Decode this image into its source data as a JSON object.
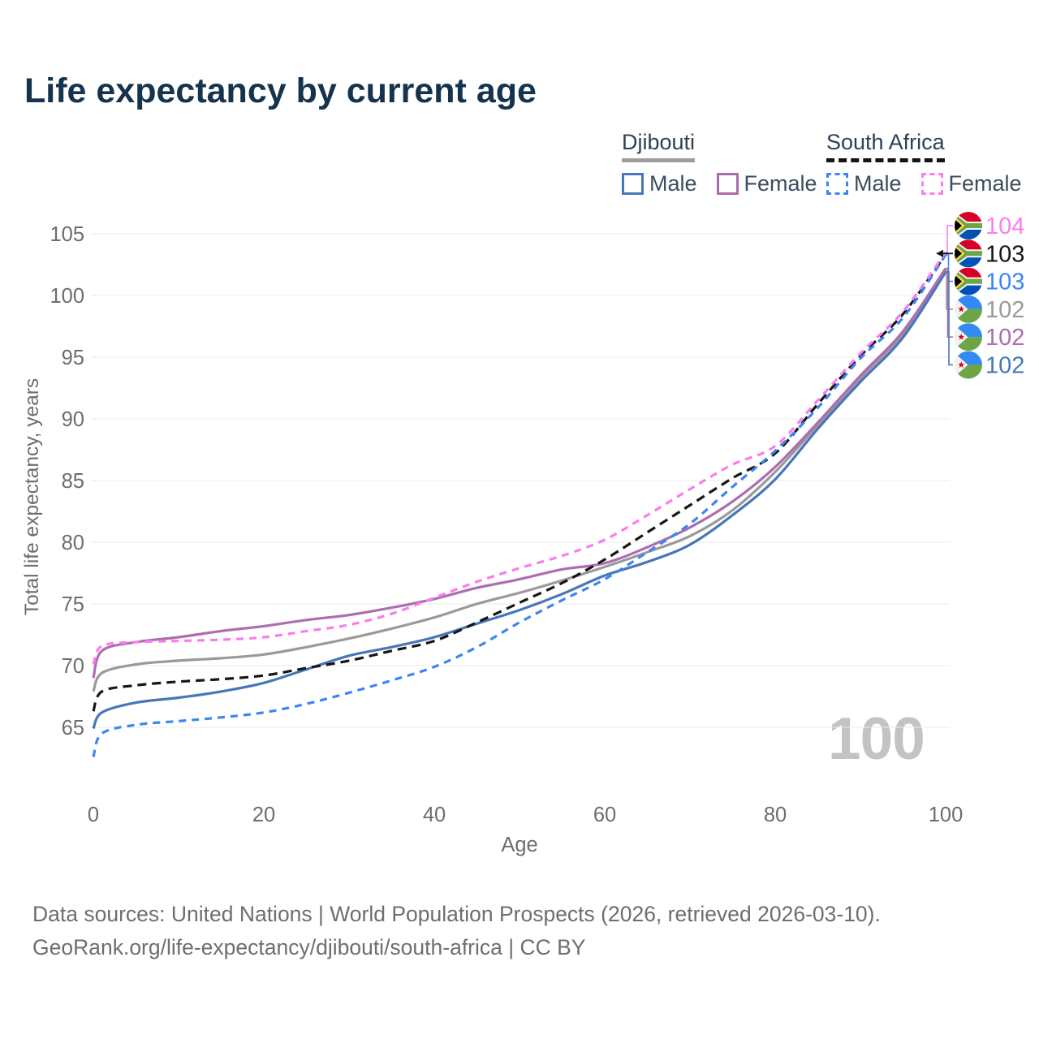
{
  "title": "Life expectancy by current age",
  "legend": {
    "groups": [
      {
        "id": "djibouti",
        "label": "Djibouti",
        "line_style": "solid",
        "line_color": "#9e9e9e",
        "items": [
          {
            "label": "Male",
            "color": "#4677b8",
            "style": "solid"
          },
          {
            "label": "Female",
            "color": "#ad6cae",
            "style": "solid"
          }
        ]
      },
      {
        "id": "south-africa",
        "label": "South Africa",
        "line_style": "dashed",
        "line_color": "#141414",
        "items": [
          {
            "label": "Male",
            "color": "#3c86f0",
            "style": "dashed"
          },
          {
            "label": "Female",
            "color": "#fb7cf0",
            "style": "dashed"
          }
        ]
      }
    ]
  },
  "watermark": "100",
  "footer": {
    "line1": "Data sources: United Nations | World Population Prospects (2026, retrieved 2026-03-10).",
    "line2": "GeoRank.org/life-expectancy/djibouti/south-africa | CC BY"
  },
  "chart_data": {
    "type": "line",
    "title": "Life expectancy by current age",
    "xlabel": "Age",
    "ylabel": "Total life expectancy, years",
    "xlim": [
      0,
      100
    ],
    "ylim": [
      62,
      106
    ],
    "x_ticks": [
      0,
      20,
      40,
      60,
      80,
      100
    ],
    "y_ticks": [
      65,
      70,
      75,
      80,
      85,
      90,
      95,
      100,
      105
    ],
    "grid": "horizontal",
    "x": [
      0,
      1,
      5,
      10,
      15,
      20,
      25,
      30,
      35,
      40,
      45,
      50,
      55,
      60,
      65,
      70,
      75,
      80,
      85,
      90,
      95,
      100
    ],
    "series": [
      {
        "name": "Djibouti",
        "sex": "both",
        "flag": "dj",
        "color": "#9a9a9a",
        "dashed": false,
        "row": 3,
        "end_label": "102",
        "values": [
          67.9,
          69.4,
          70.1,
          70.4,
          70.6,
          70.9,
          71.5,
          72.2,
          73.0,
          73.9,
          75.0,
          75.9,
          76.9,
          78.0,
          79.2,
          80.5,
          82.6,
          85.7,
          89.5,
          93.3,
          96.9,
          102.0
        ]
      },
      {
        "name": "Djibouti Male",
        "sex": "male",
        "flag": "dj",
        "color": "#4677b8",
        "dashed": false,
        "row": 5,
        "end_label": "102",
        "values": [
          64.9,
          66.2,
          67.0,
          67.4,
          67.9,
          68.6,
          69.7,
          70.8,
          71.5,
          72.3,
          73.4,
          74.5,
          75.8,
          77.3,
          78.4,
          79.8,
          82.2,
          85.1,
          89.2,
          93.0,
          96.6,
          101.9
        ]
      },
      {
        "name": "Djibouti Female",
        "sex": "female",
        "flag": "dj",
        "color": "#ae6db0",
        "dashed": false,
        "row": 4,
        "end_label": "102",
        "values": [
          69.0,
          71.2,
          71.9,
          72.3,
          72.8,
          73.2,
          73.7,
          74.1,
          74.7,
          75.4,
          76.3,
          77.0,
          77.8,
          78.3,
          79.6,
          81.2,
          83.3,
          86.1,
          89.7,
          93.5,
          97.1,
          102.2
        ]
      },
      {
        "name": "South Africa",
        "sex": "both",
        "flag": "za",
        "color": "#161616",
        "dashed": true,
        "row": 1,
        "end_label": "103",
        "values": [
          66.3,
          67.9,
          68.4,
          68.7,
          68.9,
          69.2,
          69.8,
          70.4,
          71.2,
          72.0,
          73.5,
          75.1,
          76.7,
          78.6,
          80.8,
          83.0,
          85.2,
          87.2,
          91.2,
          95.1,
          98.5,
          103.35
        ]
      },
      {
        "name": "South Africa Male",
        "sex": "male",
        "flag": "za",
        "color": "#3c86f0",
        "dashed": true,
        "row": 2,
        "end_label": "103",
        "values": [
          62.6,
          64.5,
          65.2,
          65.5,
          65.8,
          66.2,
          66.9,
          67.8,
          68.8,
          69.9,
          71.5,
          73.5,
          75.3,
          77.0,
          79.2,
          81.5,
          84.5,
          87.4,
          90.9,
          94.9,
          98.2,
          103.3
        ]
      },
      {
        "name": "South Africa Female",
        "sex": "female",
        "flag": "za",
        "color": "#fb7cf0",
        "dashed": true,
        "row": 0,
        "end_label": "104",
        "values": [
          70.1,
          71.6,
          71.9,
          72.0,
          72.1,
          72.3,
          72.8,
          73.3,
          74.2,
          75.5,
          76.8,
          77.9,
          78.9,
          80.2,
          82.2,
          84.3,
          86.3,
          87.8,
          91.5,
          95.3,
          98.7,
          103.5
        ]
      }
    ]
  }
}
